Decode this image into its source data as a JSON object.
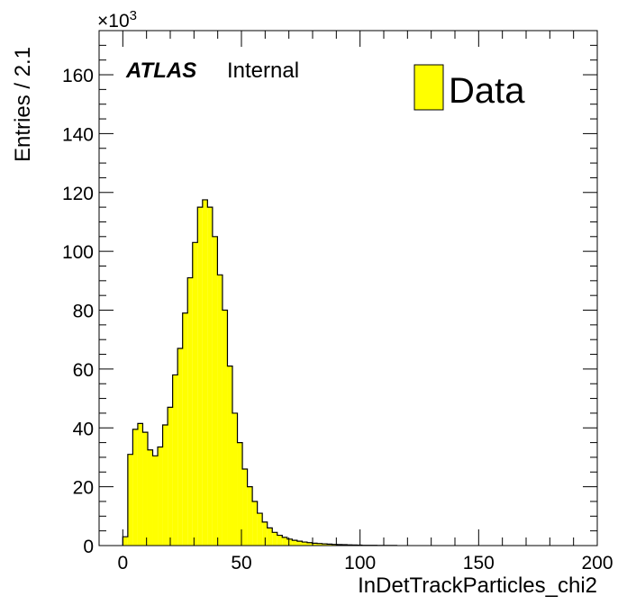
{
  "chart_data": {
    "type": "histogram",
    "xlabel": "InDetTrackParticles_chi2",
    "ylabel": "Entries / 2.1",
    "y_exponent_base": "×10",
    "y_exponent": "3",
    "y_multiplier": 1000,
    "xlim": [
      -10,
      200
    ],
    "ylim": [
      0,
      175
    ],
    "x_ticks": [
      0,
      50,
      100,
      150,
      200
    ],
    "y_ticks": [
      0,
      20,
      40,
      60,
      80,
      100,
      120,
      140,
      160
    ],
    "bin_width": 2.1,
    "bin_start": 0,
    "values": [
      3,
      31,
      39.5,
      41.5,
      38.5,
      32.5,
      30.5,
      33.5,
      41,
      47,
      58,
      67,
      79,
      91,
      103,
      115,
      117.5,
      115,
      105,
      92,
      80,
      61,
      45,
      35,
      26,
      20,
      15,
      11,
      8,
      6,
      4.5,
      3.5,
      2.8,
      2.2,
      1.8,
      1.5,
      1.2,
      1.0,
      0.8,
      0.7,
      0.6,
      0.5,
      0.4,
      0.35,
      0.3,
      0.25,
      0.2,
      0.15,
      0.1,
      0.1,
      0.08,
      0.06,
      0.05,
      0.04,
      0.03
    ],
    "series": [
      {
        "name": "Data",
        "color": "#ffff00"
      }
    ],
    "legend_position": "top-right",
    "grid": false
  },
  "annotations": {
    "atlas": "ATLAS",
    "internal": "Internal"
  },
  "legend": {
    "label": "Data"
  }
}
